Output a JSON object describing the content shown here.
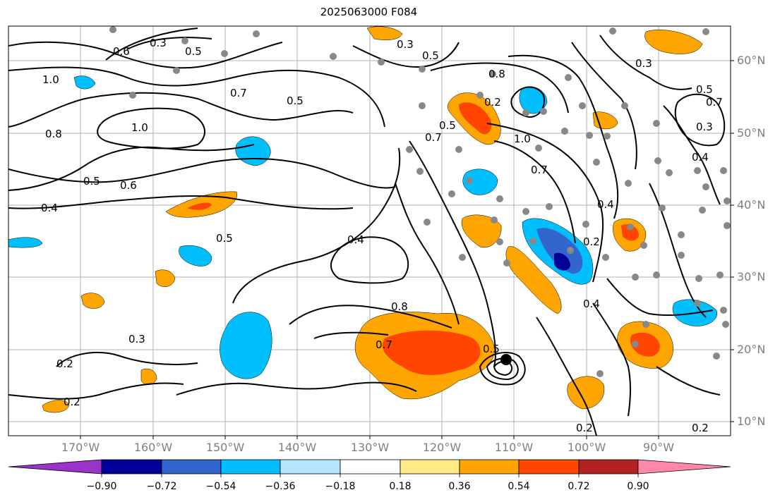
{
  "title": "2025063000 F084",
  "latitude_labels": [
    "60°N",
    "50°N",
    "40°N",
    "30°N",
    "20°N",
    "10°N"
  ],
  "longitude_labels": [
    "170°W",
    "160°W",
    "150°W",
    "140°W",
    "130°W",
    "120°W",
    "110°W",
    "100°W",
    "90°W"
  ],
  "colorbar": {
    "ticks": [
      "−0.90",
      "−0.72",
      "−0.54",
      "−0.36",
      "−0.18",
      "0.18",
      "0.36",
      "0.54",
      "0.72",
      "0.90"
    ],
    "colors": [
      "#9933cc",
      "#000099",
      "#3366cc",
      "#00bfff",
      "#b3e5ff",
      "#ffffff",
      "#ffeb85",
      "#ffa500",
      "#ff4500",
      "#b22222",
      "#ff88aa"
    ]
  },
  "contour_labels": [
    "0.3",
    "0.5",
    "0.3",
    "0.5",
    "0.6",
    "1.0",
    "0.7",
    "0.5",
    "1.0",
    "0.8",
    "0.5",
    "0.6",
    "0.4",
    "0.5",
    "0.4",
    "0.8",
    "0.7",
    "0.8",
    "0.2",
    "0.5",
    "0.7",
    "1.0",
    "0.7",
    "0.4",
    "0.2",
    "0.4",
    "0.3",
    "0.2",
    "0.2",
    "0.5",
    "0.3",
    "0.7",
    "0.5",
    "0.3",
    "0.4",
    "0.2",
    "0.2"
  ],
  "colors": {
    "axis_label": "#808080",
    "contour": "#000000",
    "station_dot": "#888888"
  }
}
